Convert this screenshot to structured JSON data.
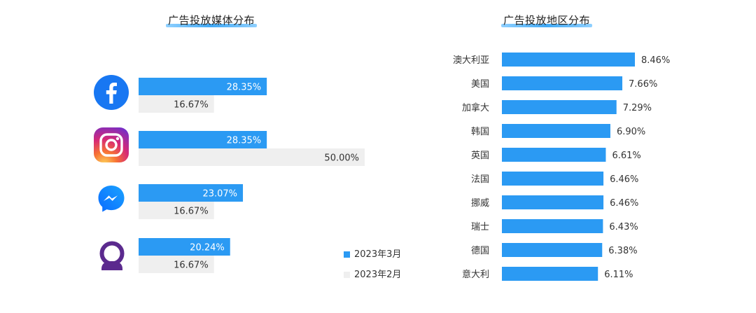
{
  "colors": {
    "march": "#2b9af3",
    "feb": "#efefef",
    "messenger_gradient": [
      "#1aa3ff",
      "#0a6bff"
    ],
    "qq_purple": "#5b2a8e"
  },
  "chart_data": [
    {
      "type": "bar",
      "orientation": "horizontal",
      "title": "广告投放媒体分布",
      "categories": [
        "Facebook",
        "Instagram",
        "Messenger",
        "Audience Network"
      ],
      "category_icons": [
        "facebook-icon",
        "instagram-icon",
        "messenger-icon",
        "audience-network-icon"
      ],
      "series": [
        {
          "name": "2023年3月",
          "values": [
            28.35,
            28.35,
            23.07,
            20.24
          ],
          "labels": [
            "28.35%",
            "28.35%",
            "23.07%",
            "20.24%"
          ]
        },
        {
          "name": "2023年2月",
          "values": [
            16.67,
            50.0,
            16.67,
            16.67
          ],
          "labels": [
            "16.67%",
            "50.00%",
            "16.67%",
            "16.67%"
          ]
        }
      ],
      "xlim": [
        0,
        50
      ],
      "legend_position": "bottom-right"
    },
    {
      "type": "bar",
      "orientation": "horizontal",
      "title": "广告投放地区分布",
      "categories": [
        "澳大利亚",
        "美国",
        "加拿大",
        "韩国",
        "英国",
        "法国",
        "挪威",
        "瑞士",
        "德国",
        "意大利"
      ],
      "values": [
        8.46,
        7.66,
        7.29,
        6.9,
        6.61,
        6.46,
        6.46,
        6.43,
        6.38,
        6.11
      ],
      "labels": [
        "8.46%",
        "7.66%",
        "7.29%",
        "6.90%",
        "6.61%",
        "6.46%",
        "6.46%",
        "6.43%",
        "6.38%",
        "6.11%"
      ],
      "xlim": [
        0,
        8.46
      ]
    }
  ]
}
